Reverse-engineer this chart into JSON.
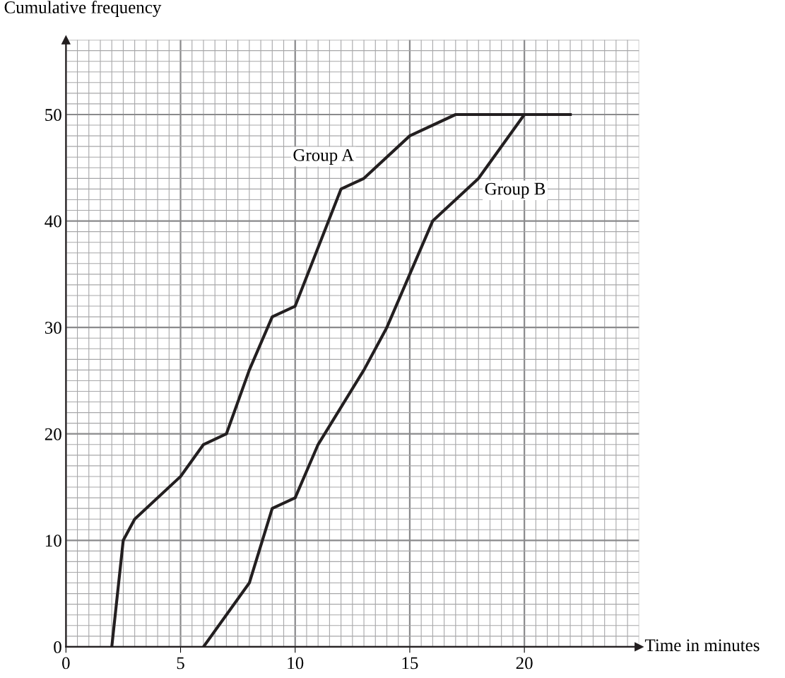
{
  "chart_data": {
    "type": "line",
    "ylabel": "Cumulative frequency",
    "xlabel": "Time in minutes",
    "series": [
      {
        "name": "Group A",
        "color": "#231f20",
        "x": [
          2,
          2.5,
          3,
          5,
          6,
          7,
          8,
          9,
          10,
          12,
          13,
          15,
          17,
          22
        ],
        "values": [
          0,
          10,
          12,
          16,
          19,
          20,
          26,
          31,
          32,
          43,
          44,
          48,
          50,
          50
        ]
      },
      {
        "name": "Group B",
        "color": "#231f20",
        "x": [
          6,
          8,
          9,
          10,
          11,
          13,
          14,
          15,
          16,
          18,
          20,
          22
        ],
        "values": [
          0,
          6,
          13,
          14,
          19,
          26,
          30,
          35,
          40,
          44,
          50,
          50
        ]
      }
    ],
    "xlim": [
      0,
      25
    ],
    "ylim": [
      0,
      57
    ],
    "xticks": [
      0,
      5,
      10,
      15,
      20
    ],
    "yticks": [
      0,
      10,
      20,
      30,
      40,
      50
    ],
    "grid": true,
    "marker": "none",
    "line_style": "solid",
    "legend": false
  }
}
